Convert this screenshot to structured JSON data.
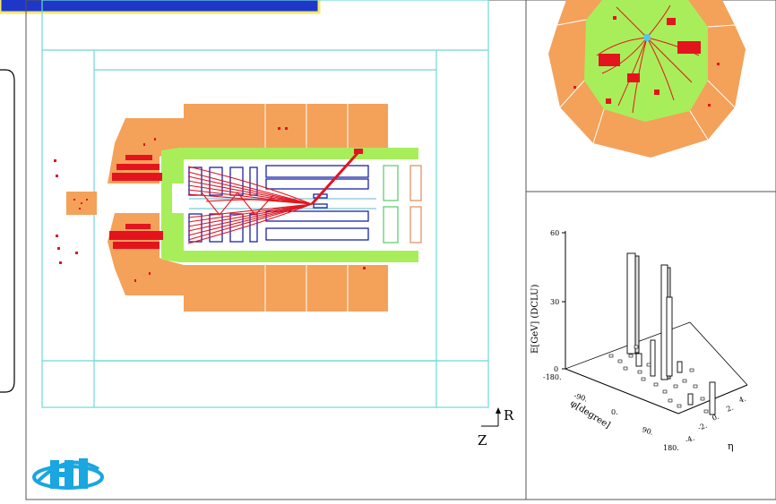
{
  "axes": {
    "radial_label": "R",
    "longitudinal_label": "Z"
  },
  "lego_plot": {
    "z_axis_label": "E[GeV] (DCLU)",
    "z_ticks": [
      "60",
      "30",
      "0"
    ],
    "phi_label": "φ[degree]",
    "phi_ticks": [
      "-180.",
      "-90.",
      "0.",
      "90.",
      "180."
    ],
    "eta_label": "η",
    "eta_ticks": [
      "-4.",
      "-2.",
      "0.",
      "2.",
      "4."
    ]
  },
  "logo": {
    "text": "H1"
  },
  "colors": {
    "calorimeter_outer": "#f4a15a",
    "calorimeter_inner": "#a8ee5a",
    "tracks": "#e4141e",
    "chambers": "#1a23a8",
    "frame_lines": "#6fd8d8",
    "title_box_fill": "#1f37c8",
    "title_box_border": "#f2e96a",
    "logo": "#1aa6e0"
  }
}
